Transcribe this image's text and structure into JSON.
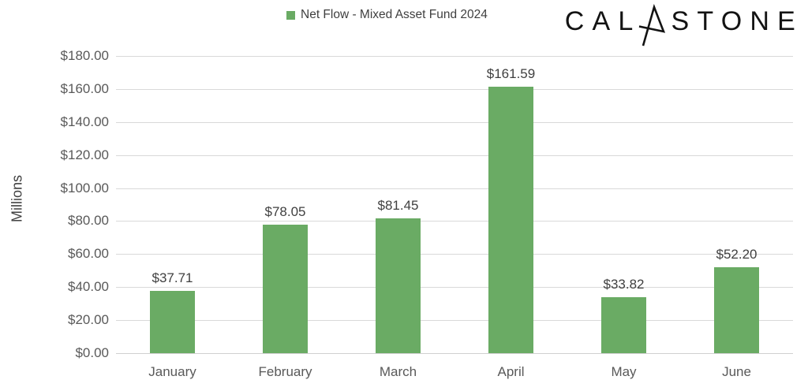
{
  "legend": {
    "label": "Net Flow - Mixed Asset Fund 2024",
    "swatch_color": "#6aab64"
  },
  "logo": {
    "brand": "Calastone",
    "text_before": "CAL",
    "text_after": "STONE"
  },
  "chart_data": {
    "type": "bar",
    "title": "Net Flow - Mixed Asset Fund 2024",
    "categories": [
      "January",
      "February",
      "March",
      "April",
      "May",
      "June"
    ],
    "values": [
      37.71,
      78.05,
      81.45,
      161.59,
      33.82,
      52.2
    ],
    "data_labels": [
      "$37.71",
      "$78.05",
      "$81.45",
      "$161.59",
      "$33.82",
      "$52.20"
    ],
    "xlabel": "",
    "ylabel": "Millions",
    "ylim": [
      0,
      180
    ],
    "y_tick_interval": 20,
    "y_tick_labels": [
      "$0.00",
      "$20.00",
      "$40.00",
      "$60.00",
      "$80.00",
      "$100.00",
      "$120.00",
      "$140.00",
      "$160.00",
      "$180.00"
    ],
    "grid": "horizontal",
    "legend_position": "top",
    "bar_color": "#6aab64"
  },
  "colors": {
    "bar_green": "#6aab64",
    "gridline": "#d9d9d9",
    "axis_text": "#595959",
    "data_label_text": "#404040",
    "logo_text": "#131313"
  }
}
